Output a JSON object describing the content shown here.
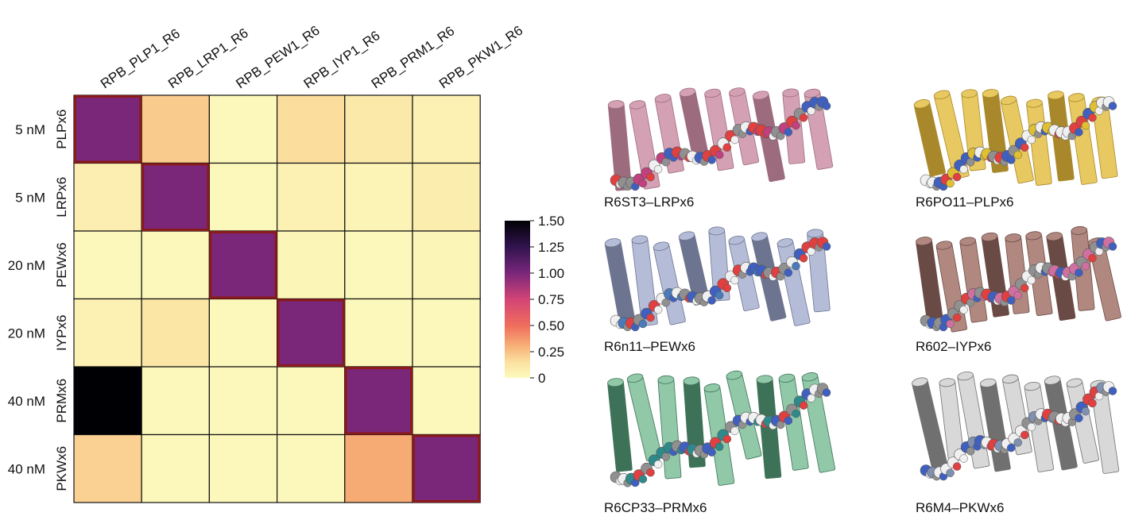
{
  "chart_data": {
    "type": "heatmap",
    "x_labels": [
      "RPB_PLP1_R6",
      "RPB_LRP1_R6",
      "RPB_PEW1_R6",
      "RPB_IYP1_R6",
      "RPB_PRM1_R6",
      "RPB_PKW1_R6"
    ],
    "y_labels": [
      "PLPx6",
      "LRPx6",
      "PEWx6",
      "IYPx6",
      "PRMx6",
      "PKWx6"
    ],
    "concentrations": [
      "5 nM",
      "5 nM",
      "20 nM",
      "20 nM",
      "40 nM",
      "40 nM"
    ],
    "values": [
      [
        1.0,
        0.22,
        0.02,
        0.16,
        0.1,
        0.06
      ],
      [
        0.07,
        1.0,
        0.02,
        0.06,
        0.04,
        0.08
      ],
      [
        0.02,
        0.02,
        1.0,
        0.03,
        0.02,
        0.03
      ],
      [
        0.06,
        0.12,
        0.02,
        1.0,
        0.02,
        0.02
      ],
      [
        1.5,
        0.02,
        0.02,
        0.02,
        1.0,
        0.02
      ],
      [
        0.2,
        0.02,
        0.02,
        0.02,
        0.32,
        1.0
      ]
    ],
    "colorbar": {
      "min": 0,
      "max": 1.5,
      "ticks": [
        "1.50",
        "1.25",
        "1.00",
        "0.75",
        "0.50",
        "0.25",
        "0"
      ],
      "colormap": "magma_r"
    },
    "highlight_diagonal_color": "#8b1a1a"
  },
  "structures": [
    {
      "caption": "R6ST3–LRPx6",
      "color": "#d4a0b4",
      "dark": "#9c6b7e",
      "bead": "#c04080"
    },
    {
      "caption": "R6PO11–PLPx6",
      "color": "#e8c860",
      "dark": "#a8882a",
      "bead": "#e0c030"
    },
    {
      "caption": "R6n11–PEWx6",
      "color": "#b4bcd8",
      "dark": "#6c7490",
      "bead": "#4a7ab8"
    },
    {
      "caption": "R602–IYPx6",
      "color": "#b08880",
      "dark": "#6a4a44",
      "bead": "#d070a0"
    },
    {
      "caption": "R6CP33–PRMx6",
      "color": "#90c8a8",
      "dark": "#3e7258",
      "bead": "#2e8a8a"
    },
    {
      "caption": "R6M4–PKWx6",
      "color": "#d8d8d8",
      "dark": "#707070",
      "bead": "#8090b0"
    }
  ]
}
